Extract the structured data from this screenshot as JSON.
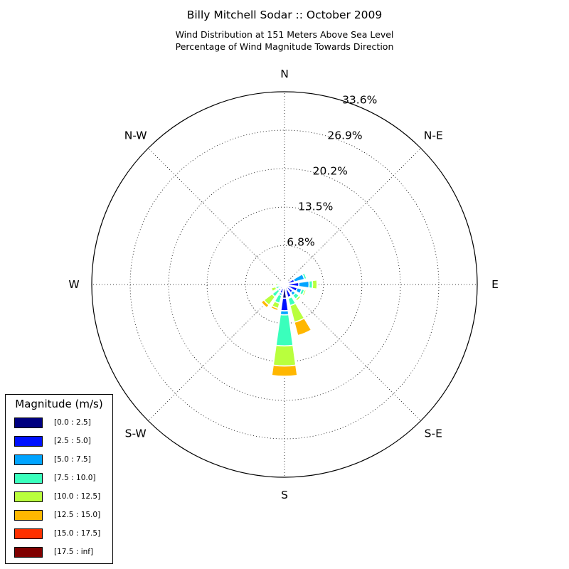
{
  "title": "Billy Mitchell Sodar :: October 2009",
  "subtitle_line1": "Wind Distribution at 151 Meters Above Sea Level",
  "subtitle_line2": "Percentage of Wind Magnitude Towards Direction",
  "chart_data": {
    "type": "windrose",
    "rmax": 33.6,
    "radial_ticks": [
      6.8,
      13.5,
      20.2,
      26.9,
      33.6
    ],
    "radial_tick_labels": [
      "6.8%",
      "13.5%",
      "20.2%",
      "26.9%",
      "33.6%"
    ],
    "direction_labels": [
      "N",
      "N-E",
      "E",
      "S-E",
      "S",
      "S-W",
      "W",
      "N-W"
    ],
    "legend_title": "Magnitude (m/s)",
    "bins": [
      {
        "label": "[0.0 : 2.5]",
        "color": "#000080"
      },
      {
        "label": "[2.5 : 5.0]",
        "color": "#0011ff"
      },
      {
        "label": "[5.0 : 7.5]",
        "color": "#00a4ff"
      },
      {
        "label": "[7.5 : 10.0]",
        "color": "#3affbc"
      },
      {
        "label": "[10.0 : 12.5]",
        "color": "#b9ff3d"
      },
      {
        "label": "[12.5 : 15.0]",
        "color": "#ffb700"
      },
      {
        "label": "[15.0 : 17.5]",
        "color": "#ff3000"
      },
      {
        "label": "[17.5 : inf]",
        "color": "#800000"
      }
    ],
    "sector_width_deg": 16,
    "sectors": [
      {
        "direction": 0,
        "values": [
          0.2,
          0.2,
          0.1,
          0.1,
          0.0,
          0,
          0,
          0
        ]
      },
      {
        "direction": 22.5,
        "values": [
          0.3,
          0.3,
          0.1,
          0.1,
          0.0,
          0,
          0,
          0
        ]
      },
      {
        "direction": 45,
        "values": [
          0.2,
          0.2,
          0.2,
          0.1,
          0.0,
          0,
          0,
          0
        ]
      },
      {
        "direction": 67.5,
        "values": [
          0.6,
          1.2,
          1.8,
          0.4,
          0.2,
          0,
          0,
          0
        ]
      },
      {
        "direction": 90,
        "values": [
          0.6,
          1.9,
          1.8,
          0.6,
          0.8,
          0,
          0,
          0
        ]
      },
      {
        "direction": 112.5,
        "values": [
          0.6,
          1.7,
          0.8,
          0.5,
          0.3,
          0,
          0,
          0
        ]
      },
      {
        "direction": 135,
        "values": [
          0.7,
          1.1,
          0.6,
          0.8,
          0.4,
          0.2,
          0.2,
          0
        ]
      },
      {
        "direction": 157.5,
        "values": [
          1.0,
          1.3,
          0.2,
          1.3,
          3.0,
          2.4,
          0,
          0
        ]
      },
      {
        "direction": 180,
        "values": [
          2.4,
          2.2,
          0.7,
          5.4,
          3.5,
          1.8,
          0,
          0
        ]
      },
      {
        "direction": 202.5,
        "values": [
          0.7,
          0.9,
          0.4,
          1.4,
          0.9,
          0.4,
          0,
          0
        ]
      },
      {
        "direction": 225,
        "values": [
          0.4,
          0.6,
          0.4,
          1.3,
          1.8,
          0.6,
          0,
          0
        ]
      },
      {
        "direction": 247.5,
        "values": [
          0.3,
          0.4,
          0.3,
          0.6,
          0.8,
          0.0,
          0,
          0
        ]
      },
      {
        "direction": 270,
        "values": [
          0.3,
          0.4,
          0.3,
          0.3,
          0.3,
          0,
          0,
          0
        ]
      },
      {
        "direction": 292.5,
        "values": [
          0.2,
          0.2,
          0.2,
          0.2,
          0.1,
          0,
          0,
          0
        ]
      },
      {
        "direction": 315,
        "values": [
          0.2,
          0.2,
          0.2,
          0.1,
          0.0,
          0,
          0,
          0
        ]
      },
      {
        "direction": 337.5,
        "values": [
          0.2,
          0.2,
          0.1,
          0.1,
          0.0,
          0,
          0,
          0
        ]
      }
    ]
  }
}
